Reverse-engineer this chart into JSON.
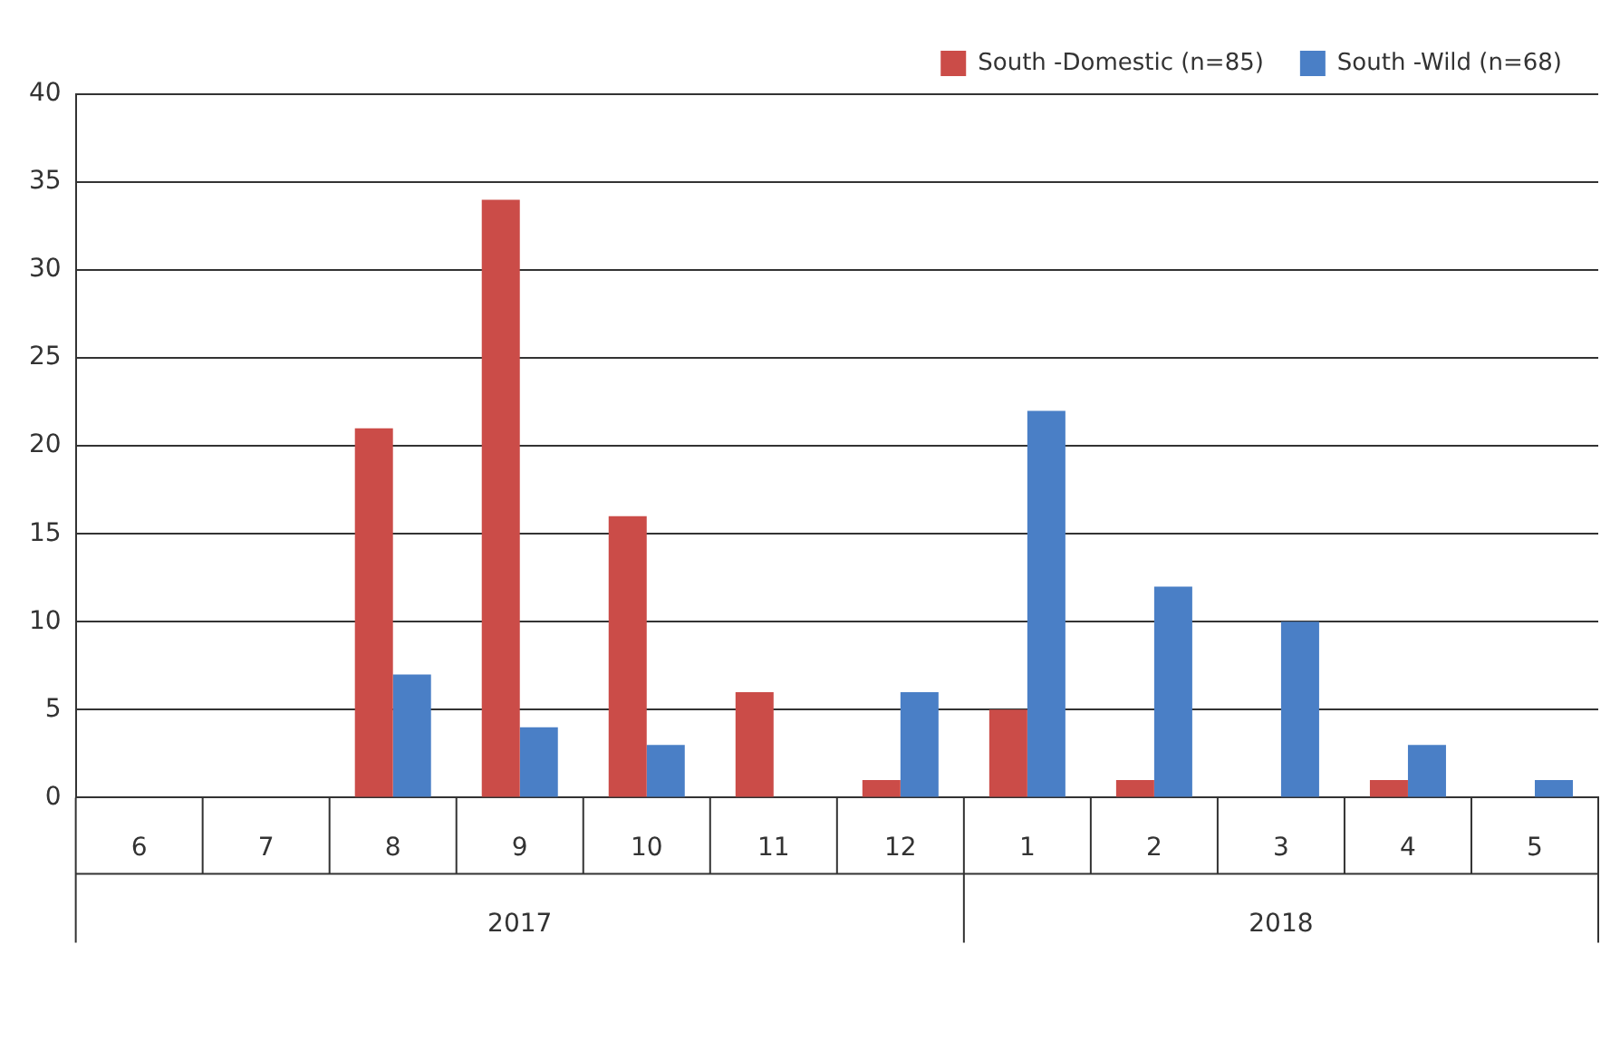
{
  "chart_data": {
    "type": "bar",
    "categories": [
      "6",
      "7",
      "8",
      "9",
      "10",
      "11",
      "12",
      "1",
      "2",
      "3",
      "4",
      "5"
    ],
    "series": [
      {
        "name": "South -Domestic (n=85)",
        "color": "#cb4c48",
        "values": [
          0,
          0,
          21,
          34,
          16,
          6,
          1,
          5,
          1,
          0,
          1,
          0
        ]
      },
      {
        "name": "South -Wild (n=68)",
        "color": "#4a7fc6",
        "values": [
          0,
          0,
          7,
          4,
          3,
          0,
          6,
          22,
          12,
          10,
          3,
          1
        ]
      }
    ],
    "annotations": [
      "2017",
      "2018"
    ],
    "ylim": [
      0,
      40
    ],
    "yticks": [
      0,
      5,
      10,
      15,
      20,
      25,
      30,
      35,
      40
    ],
    "grid": "y",
    "legend": "top right"
  }
}
